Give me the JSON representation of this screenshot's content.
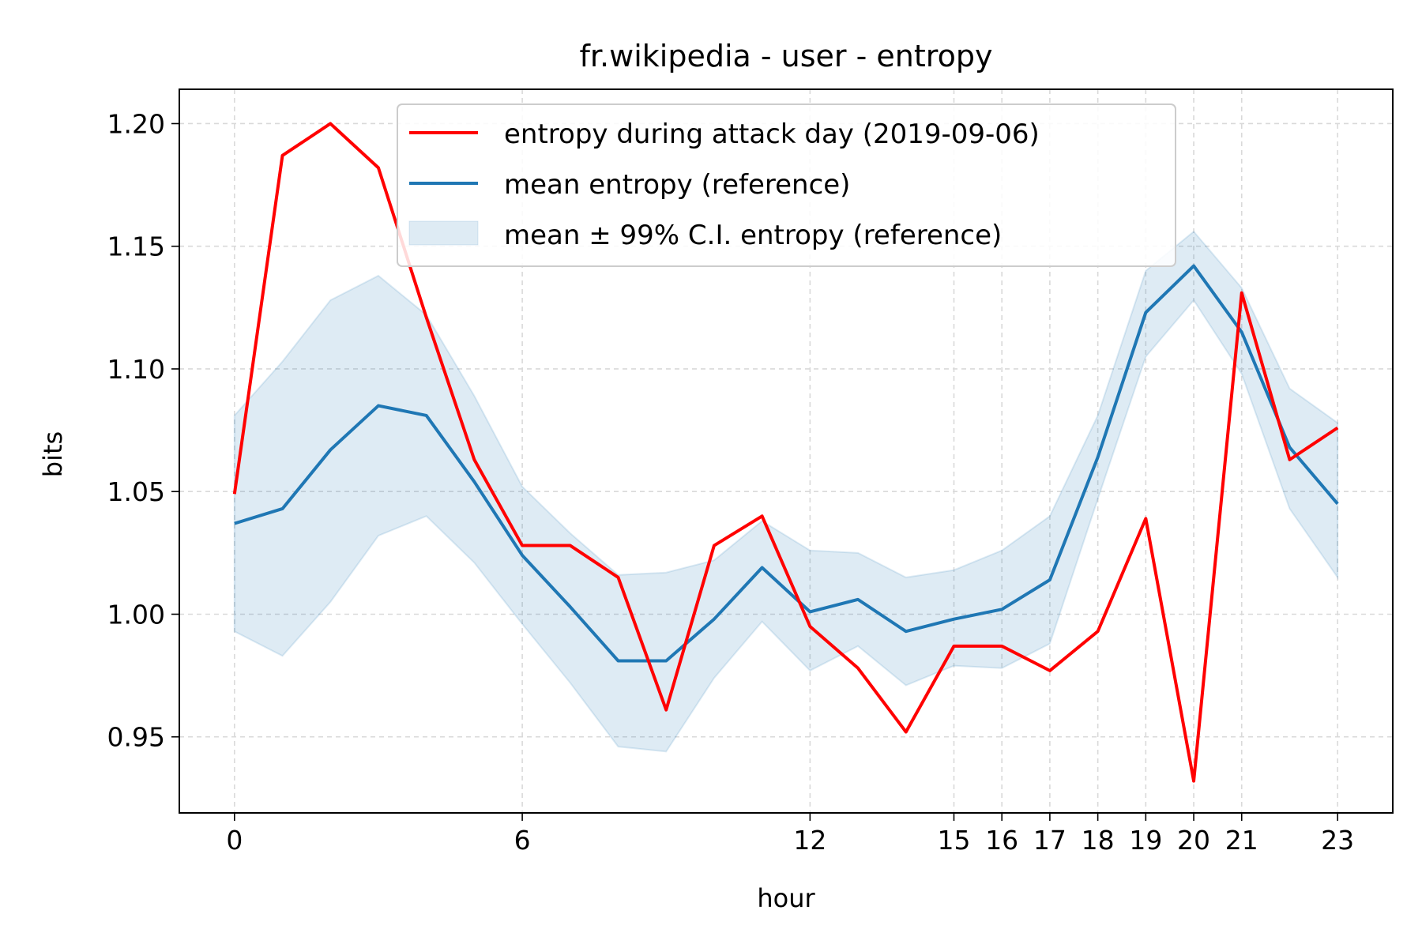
{
  "chart_data": {
    "type": "line",
    "title": "fr.wikipedia - user - entropy",
    "xlabel": "hour",
    "ylabel": "bits",
    "xlim": [
      -1.15,
      24.15
    ],
    "ylim": [
      0.919,
      1.214
    ],
    "xticks": [
      0,
      6,
      12,
      15,
      16,
      17,
      18,
      19,
      20,
      21,
      23
    ],
    "yticks": [
      0.95,
      1.0,
      1.05,
      1.1,
      1.15,
      1.2
    ],
    "ytick_labels": [
      "0.95",
      "1.00",
      "1.05",
      "1.10",
      "1.15",
      "1.20"
    ],
    "grid": true,
    "legend_position": "top-center",
    "x": [
      0,
      1,
      2,
      3,
      4,
      5,
      6,
      7,
      8,
      9,
      10,
      11,
      12,
      13,
      14,
      15,
      16,
      17,
      18,
      19,
      20,
      21,
      22,
      23
    ],
    "series": [
      {
        "name": "entropy during attack day (2019-09-06)",
        "color": "#ff0000",
        "values": [
          1.049,
          1.187,
          1.2,
          1.182,
          1.121,
          1.063,
          1.028,
          1.028,
          1.015,
          0.961,
          1.028,
          1.04,
          0.995,
          0.978,
          0.952,
          0.987,
          0.987,
          0.977,
          0.993,
          1.039,
          0.932,
          1.131,
          1.063,
          1.076
        ]
      },
      {
        "name": "mean entropy (reference)",
        "color": "#1f77b4",
        "values": [
          1.037,
          1.043,
          1.067,
          1.085,
          1.081,
          1.054,
          1.024,
          1.003,
          0.981,
          0.981,
          0.998,
          1.019,
          1.001,
          1.006,
          0.993,
          0.998,
          1.002,
          1.014,
          1.064,
          1.123,
          1.142,
          1.115,
          1.068,
          1.045
        ]
      }
    ],
    "band": {
      "name": "mean ± 99% C.I. entropy (reference)",
      "color": "#1f77b4",
      "upper": [
        1.081,
        1.103,
        1.128,
        1.138,
        1.122,
        1.089,
        1.052,
        1.033,
        1.016,
        1.017,
        1.022,
        1.038,
        1.026,
        1.025,
        1.015,
        1.018,
        1.026,
        1.04,
        1.081,
        1.14,
        1.156,
        1.133,
        1.092,
        1.078
      ],
      "lower": [
        0.993,
        0.983,
        1.005,
        1.032,
        1.04,
        1.021,
        0.996,
        0.972,
        0.946,
        0.944,
        0.974,
        0.997,
        0.977,
        0.987,
        0.971,
        0.979,
        0.978,
        0.988,
        1.047,
        1.105,
        1.128,
        1.098,
        1.043,
        1.015
      ]
    }
  }
}
